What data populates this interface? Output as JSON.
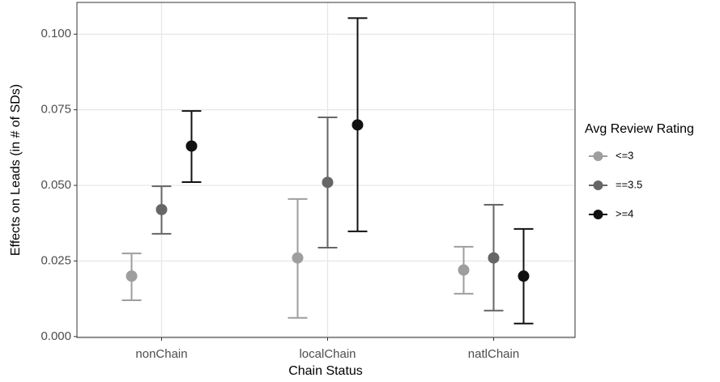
{
  "chart_data": {
    "type": "errorbar",
    "x_label": "Chain Status",
    "y_label": "Effects on Leads (in # of SDs)",
    "categories": [
      "nonChain",
      "localChain",
      "natlChain"
    ],
    "legend_title": "Avg Review Rating",
    "legend_position": "right",
    "grid": true,
    "ylim": [
      -0.0003,
      0.1105
    ],
    "yticks": [
      {
        "value": 0,
        "label": "0.000"
      },
      0.025,
      {
        "value": 0.05,
        "label": "0.050"
      },
      0.075,
      {
        "value": 0.1,
        "label": "0.100"
      }
    ],
    "series": [
      {
        "name": "<=3",
        "color": "#9e9e9e",
        "values": [
          0.02,
          0.026,
          0.022
        ],
        "lower": [
          0.012,
          0.0062,
          0.0142
        ],
        "upper": [
          0.0275,
          0.0455,
          0.0297
        ]
      },
      {
        "name": "==3.5",
        "color": "#666666",
        "values": [
          0.042,
          0.051,
          0.026
        ],
        "lower": [
          0.034,
          0.0294,
          0.0086
        ],
        "upper": [
          0.0497,
          0.0725,
          0.0436
        ]
      },
      {
        "name": ">=4",
        "color": "#111111",
        "values": [
          0.063,
          0.07,
          0.02
        ],
        "lower": [
          0.0511,
          0.0348,
          0.0043
        ],
        "upper": [
          0.0746,
          0.1053,
          0.0356
        ]
      }
    ]
  }
}
